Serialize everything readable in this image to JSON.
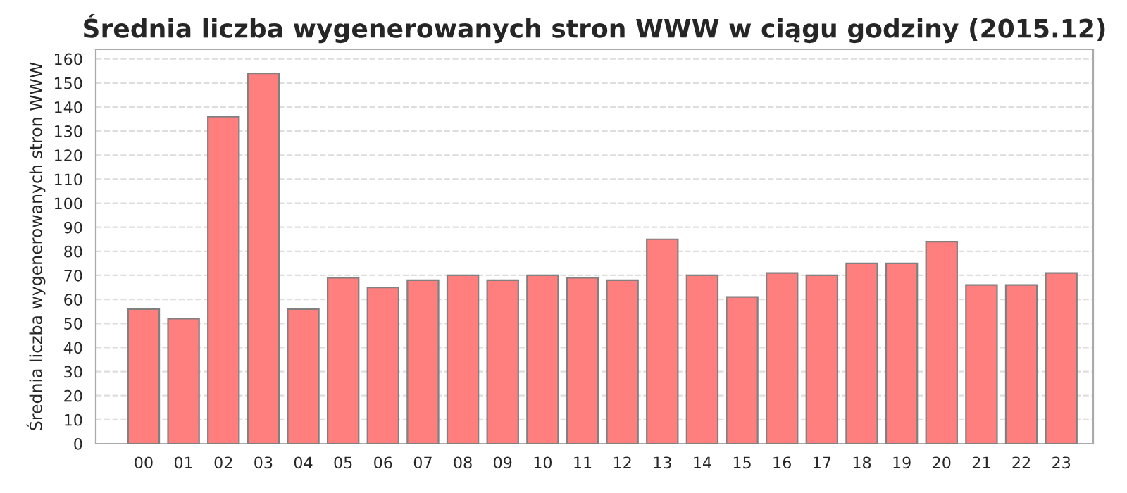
{
  "chart_data": {
    "type": "bar",
    "title": "Średnia liczba wygenerowanych stron WWW w ciągu godziny (2015.12)",
    "ylabel": "Średnia liczba wygenerowanych stron WWW",
    "categories": [
      "00",
      "01",
      "02",
      "03",
      "04",
      "05",
      "06",
      "07",
      "08",
      "09",
      "10",
      "11",
      "12",
      "13",
      "14",
      "15",
      "16",
      "17",
      "18",
      "19",
      "20",
      "21",
      "22",
      "23"
    ],
    "values": [
      56,
      52,
      136,
      154,
      56,
      69,
      65,
      68,
      70,
      68,
      70,
      69,
      68,
      85,
      70,
      61,
      71,
      70,
      75,
      75,
      84,
      66,
      66,
      71
    ],
    "color": "#ff7f7f",
    "ylim": [
      0,
      164
    ],
    "yticks": [
      0,
      10,
      20,
      30,
      40,
      50,
      60,
      70,
      80,
      90,
      100,
      110,
      120,
      130,
      140,
      150,
      160
    ],
    "grid": "y"
  }
}
